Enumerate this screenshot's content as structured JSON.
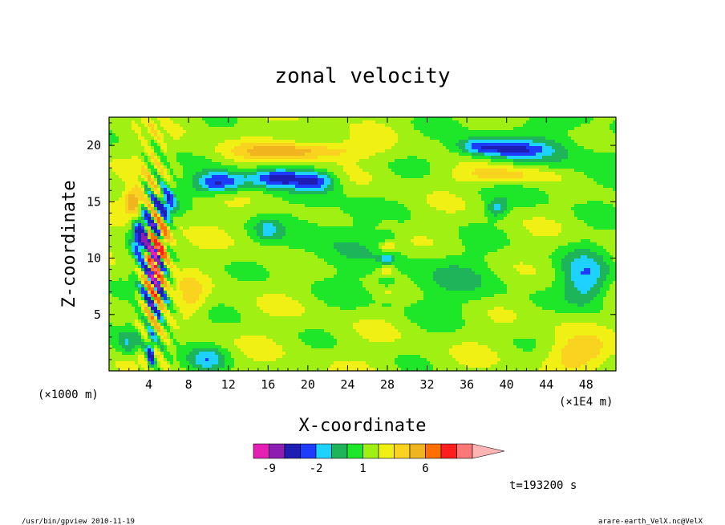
{
  "chart_data": {
    "type": "heatmap",
    "subtype": "filled-contour",
    "title": "zonal velocity",
    "xlabel": "X-coordinate",
    "ylabel": "Z-coordinate",
    "x_unit": "(×1E4 m)",
    "y_unit": "(×1000 m)",
    "xlim": [
      0,
      51
    ],
    "ylim": [
      0,
      22.5
    ],
    "x_ticks": [
      4,
      8,
      12,
      16,
      20,
      24,
      28,
      32,
      36,
      40,
      44,
      48
    ],
    "y_ticks": [
      5,
      10,
      15,
      20
    ],
    "colorbar": {
      "levels": [
        -12,
        -9,
        -6,
        -3,
        -2,
        -1,
        0,
        1,
        2,
        3,
        4,
        6,
        9,
        12,
        15
      ],
      "colors": [
        "#e61eb4",
        "#8c1eb4",
        "#1e1eb4",
        "#1e3cff",
        "#1ed2ff",
        "#1eb45a",
        "#1ee628",
        "#a0f014",
        "#f0f014",
        "#fad220",
        "#f0b41e",
        "#ff6e00",
        "#ff1e1e",
        "#ff7878",
        "#ffb4b4"
      ],
      "tick_labels": [
        {
          "value": -9,
          "label": "-9"
        },
        {
          "value": -2,
          "label": "-2"
        },
        {
          "value": 1,
          "label": "1"
        },
        {
          "value": 6,
          "label": "6"
        }
      ]
    },
    "time_label": "t=193200 s",
    "grid": false
  },
  "footer": {
    "left": "/usr/bin/gpview  2010-11-19",
    "right": "arare-earth_VelX.nc@VelX"
  }
}
